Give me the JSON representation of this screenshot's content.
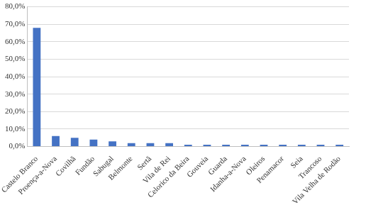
{
  "chart_data": {
    "type": "bar",
    "categories": [
      "Castelo Branco",
      "Proença-a-Nova",
      "Covilhã",
      "Fundão",
      "Sabugal",
      "Belmonte",
      "Sertã",
      "Vila de Rei",
      "Celorico da Beira",
      "Gouveia",
      "Guarda",
      "Idanha-a-Nova",
      "Oleiros",
      "Penamacor",
      "Seia",
      "Trancoso",
      "Vila Velha de Rodão"
    ],
    "values": [
      68,
      6,
      5,
      4,
      3,
      2,
      2,
      2,
      1,
      1,
      1,
      1,
      1,
      1,
      1,
      1,
      1
    ],
    "color": "#4472c4",
    "ylim": [
      0,
      80
    ],
    "yticks": [
      {
        "value": 0,
        "label": "0,0%"
      },
      {
        "value": 10,
        "label": "10,0%"
      },
      {
        "value": 20,
        "label": "20,0%"
      },
      {
        "value": 30,
        "label": "30,0%"
      },
      {
        "value": 40,
        "label": "40,0%"
      },
      {
        "value": 50,
        "label": "50,0%"
      },
      {
        "value": 60,
        "label": "60,0%"
      },
      {
        "value": 70,
        "label": "70,0%"
      },
      {
        "value": 80,
        "label": "80,0%"
      }
    ],
    "grid": true
  }
}
